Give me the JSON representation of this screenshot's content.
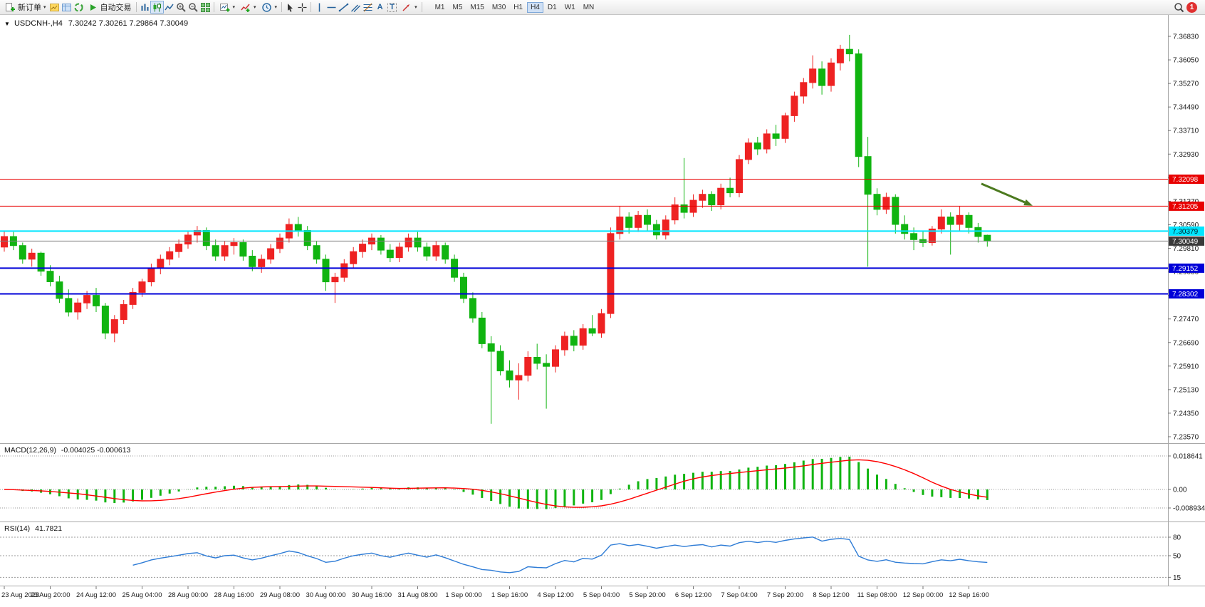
{
  "toolbar": {
    "new_order": "新订单",
    "autotrade": "自动交易",
    "timeframes": [
      "M1",
      "M5",
      "M15",
      "M30",
      "H1",
      "H4",
      "D1",
      "W1",
      "MN"
    ],
    "active_timeframe": "H4",
    "notification_count": "1"
  },
  "icons": {
    "dropdown_caret": "▾",
    "symbol_collapse": "▼",
    "text_tool": "A",
    "label_tool": "T"
  },
  "symbol_header": {
    "symbol_period": "USDCNH-,H4",
    "ohlc": "7.30242 7.30261 7.29864 7.30049"
  },
  "chart_data": [
    {
      "type": "candlestick",
      "title": "USDCNH-,H4",
      "up_color": "#ee2222",
      "down_color": "#10b410",
      "y_axis": {
        "min": 7.2357,
        "max": 7.3683,
        "step": 0.0078,
        "decimals": 5
      },
      "label_every": 5,
      "x_labels": [
        "23 Aug 2023",
        "23 Aug 20:00",
        "24 Aug 12:00",
        "25 Aug 04:00",
        "28 Aug 00:00",
        "28 Aug 16:00",
        "29 Aug 08:00",
        "30 Aug 00:00",
        "30 Aug 16:00",
        "31 Aug 08:00",
        "1 Sep 00:00",
        "1 Sep 16:00",
        "4 Sep 12:00",
        "5 Sep 04:00",
        "5 Sep 20:00",
        "6 Sep 12:00",
        "7 Sep 04:00",
        "7 Sep 20:00",
        "8 Sep 12:00",
        "11 Sep 08:00",
        "12 Sep 00:00",
        "12 Sep 16:00"
      ],
      "levels": [
        {
          "price": 7.32098,
          "price_display": "7.32098",
          "color": "#e80000",
          "width": 1,
          "badge_bg": "#e80000",
          "badge_fg": "#ffffff"
        },
        {
          "price": 7.31205,
          "price_display": "7.31205",
          "color": "#e80000",
          "width": 1,
          "badge_bg": "#e80000",
          "badge_fg": "#ffffff"
        },
        {
          "price": 7.30379,
          "price_display": "7.30379",
          "color": "#00e5ff",
          "width": 2,
          "badge_bg": "#00e5ff",
          "badge_fg": "#00222a"
        },
        {
          "price": 7.30049,
          "price_display": "7.30049",
          "color": "#808080",
          "width": 1,
          "badge_bg": "#3a3a3a",
          "badge_fg": "#ffffff"
        },
        {
          "price": 7.29152,
          "price_display": "7.29152",
          "color": "#0000d8",
          "width": 2,
          "badge_bg": "#0000d8",
          "badge_fg": "#ffffff"
        },
        {
          "price": 7.28302,
          "price_display": "7.28302",
          "color": "#0000d8",
          "width": 2,
          "badge_bg": "#0000d8",
          "badge_fg": "#ffffff"
        }
      ],
      "bid_price": 7.30049,
      "arrow": {
        "color": "#4c7a1f",
        "from_price": 7.3195,
        "to_price": 7.3122
      },
      "candles": [
        [
          7.2985,
          7.304,
          7.297,
          7.302
        ],
        [
          7.302,
          7.3035,
          7.2975,
          7.299
        ],
        [
          7.299,
          7.3,
          7.293,
          7.2945
        ],
        [
          7.2945,
          7.298,
          7.292,
          7.2965
        ],
        [
          7.2965,
          7.297,
          7.289,
          7.2905
        ],
        [
          7.2905,
          7.2925,
          7.2855,
          7.287
        ],
        [
          7.287,
          7.289,
          7.28,
          7.2815
        ],
        [
          7.2815,
          7.2845,
          7.2755,
          7.277
        ],
        [
          7.277,
          7.2815,
          7.2745,
          7.28
        ],
        [
          7.28,
          7.284,
          7.278,
          7.2825
        ],
        [
          7.2825,
          7.285,
          7.277,
          7.279
        ],
        [
          7.279,
          7.28,
          7.268,
          7.27
        ],
        [
          7.27,
          7.276,
          7.267,
          7.2745
        ],
        [
          7.2745,
          7.281,
          7.273,
          7.2795
        ],
        [
          7.2795,
          7.285,
          7.278,
          7.2835
        ],
        [
          7.2835,
          7.288,
          7.282,
          7.287
        ],
        [
          7.287,
          7.293,
          7.2855,
          7.2915
        ],
        [
          7.2915,
          7.296,
          7.2895,
          7.2945
        ],
        [
          7.2945,
          7.2985,
          7.2925,
          7.297
        ],
        [
          7.297,
          7.301,
          7.295,
          7.2995
        ],
        [
          7.2995,
          7.304,
          7.298,
          7.3025
        ],
        [
          7.3025,
          7.3055,
          7.3,
          7.304
        ],
        [
          7.304,
          7.305,
          7.2975,
          7.299
        ],
        [
          7.299,
          7.301,
          7.294,
          7.2955
        ],
        [
          7.2955,
          7.3005,
          7.294,
          7.299
        ],
        [
          7.299,
          7.3015,
          7.296,
          7.3
        ],
        [
          7.3,
          7.301,
          7.294,
          7.2955
        ],
        [
          7.2955,
          7.2975,
          7.2905,
          7.292
        ],
        [
          7.292,
          7.296,
          7.29,
          7.2945
        ],
        [
          7.2945,
          7.2995,
          7.293,
          7.298
        ],
        [
          7.298,
          7.303,
          7.2965,
          7.3015
        ],
        [
          7.3015,
          7.308,
          7.3,
          7.306
        ],
        [
          7.306,
          7.3085,
          7.302,
          7.304
        ],
        [
          7.304,
          7.3055,
          7.2975,
          7.299
        ],
        [
          7.299,
          7.3005,
          7.293,
          7.2945
        ],
        [
          7.2945,
          7.296,
          7.284,
          7.287
        ],
        [
          7.287,
          7.29,
          7.28,
          7.2885
        ],
        [
          7.2885,
          7.2945,
          7.287,
          7.293
        ],
        [
          7.293,
          7.2985,
          7.2915,
          7.297
        ],
        [
          7.297,
          7.301,
          7.295,
          7.2995
        ],
        [
          7.2995,
          7.303,
          7.2975,
          7.3015
        ],
        [
          7.3015,
          7.3025,
          7.296,
          7.2975
        ],
        [
          7.2975,
          7.2995,
          7.2935,
          7.295
        ],
        [
          7.295,
          7.3,
          7.2935,
          7.2985
        ],
        [
          7.2985,
          7.303,
          7.297,
          7.3015
        ],
        [
          7.3015,
          7.3035,
          7.297,
          7.2985
        ],
        [
          7.2985,
          7.3,
          7.294,
          7.2955
        ],
        [
          7.2955,
          7.3005,
          7.294,
          7.299
        ],
        [
          7.299,
          7.3,
          7.293,
          7.2945
        ],
        [
          7.2945,
          7.296,
          7.287,
          7.2885
        ],
        [
          7.2885,
          7.29,
          7.28,
          7.2815
        ],
        [
          7.2815,
          7.2835,
          7.2735,
          7.275
        ],
        [
          7.275,
          7.277,
          7.265,
          7.2665
        ],
        [
          7.2665,
          7.269,
          7.24,
          7.264
        ],
        [
          7.264,
          7.266,
          7.256,
          7.2575
        ],
        [
          7.2575,
          7.261,
          7.252,
          7.2545
        ],
        [
          7.2545,
          7.26,
          7.248,
          7.256
        ],
        [
          7.256,
          7.264,
          7.254,
          7.262
        ],
        [
          7.262,
          7.2665,
          7.258,
          7.26
        ],
        [
          7.26,
          7.263,
          7.245,
          7.259
        ],
        [
          7.259,
          7.266,
          7.257,
          7.2645
        ],
        [
          7.2645,
          7.2705,
          7.2625,
          7.269
        ],
        [
          7.269,
          7.271,
          7.264,
          7.266
        ],
        [
          7.266,
          7.273,
          7.2645,
          7.2715
        ],
        [
          7.2715,
          7.276,
          7.269,
          7.27
        ],
        [
          7.27,
          7.278,
          7.2685,
          7.2765
        ],
        [
          7.2765,
          7.305,
          7.275,
          7.303
        ],
        [
          7.303,
          7.312,
          7.301,
          7.3085
        ],
        [
          7.3085,
          7.31,
          7.303,
          7.305
        ],
        [
          7.305,
          7.3105,
          7.3035,
          7.309
        ],
        [
          7.309,
          7.311,
          7.304,
          7.306
        ],
        [
          7.306,
          7.3075,
          7.301,
          7.3025
        ],
        [
          7.3025,
          7.309,
          7.301,
          7.3075
        ],
        [
          7.3075,
          7.315,
          7.306,
          7.3125
        ],
        [
          7.3125,
          7.328,
          7.308,
          7.31
        ],
        [
          7.31,
          7.316,
          7.3085,
          7.314
        ],
        [
          7.314,
          7.3175,
          7.3115,
          7.316
        ],
        [
          7.316,
          7.317,
          7.3105,
          7.3125
        ],
        [
          7.3125,
          7.3195,
          7.311,
          7.318
        ],
        [
          7.318,
          7.3215,
          7.315,
          7.3165
        ],
        [
          7.3165,
          7.329,
          7.315,
          7.3275
        ],
        [
          7.3275,
          7.3345,
          7.326,
          7.333
        ],
        [
          7.333,
          7.335,
          7.329,
          7.331
        ],
        [
          7.331,
          7.3375,
          7.3295,
          7.336
        ],
        [
          7.336,
          7.339,
          7.332,
          7.3345
        ],
        [
          7.3345,
          7.343,
          7.333,
          7.342
        ],
        [
          7.342,
          7.35,
          7.34,
          7.3485
        ],
        [
          7.3485,
          7.3545,
          7.346,
          7.353
        ],
        [
          7.353,
          7.362,
          7.351,
          7.3575
        ],
        [
          7.3575,
          7.36,
          7.349,
          7.352
        ],
        [
          7.352,
          7.361,
          7.35,
          7.3595
        ],
        [
          7.3595,
          7.3655,
          7.357,
          7.364
        ],
        [
          7.364,
          7.3688,
          7.36,
          7.3625
        ],
        [
          7.3625,
          7.364,
          7.325,
          7.3285
        ],
        [
          7.3285,
          7.335,
          7.292,
          7.316
        ],
        [
          7.316,
          7.318,
          7.309,
          7.311
        ],
        [
          7.311,
          7.3165,
          7.3095,
          7.315
        ],
        [
          7.315,
          7.316,
          7.303,
          7.306
        ],
        [
          7.306,
          7.309,
          7.301,
          7.303
        ],
        [
          7.303,
          7.305,
          7.2975,
          7.301
        ],
        [
          7.301,
          7.304,
          7.2985,
          7.3
        ],
        [
          7.3,
          7.3055,
          7.299,
          7.3045
        ],
        [
          7.3045,
          7.311,
          7.303,
          7.3085
        ],
        [
          7.3085,
          7.31,
          7.296,
          7.306
        ],
        [
          7.306,
          7.312,
          7.304,
          7.309
        ],
        [
          7.309,
          7.31,
          7.303,
          7.305
        ],
        [
          7.305,
          7.3065,
          7.3,
          7.302
        ],
        [
          7.30242,
          7.30261,
          7.29864,
          7.30049
        ]
      ]
    },
    {
      "type": "macd",
      "label": "MACD(12,26,9)",
      "params": [
        12,
        26,
        9
      ],
      "values_display": "-0.004025 -0.000613",
      "axis_labels": [
        "0.018641",
        "0.00",
        "-0.008934"
      ],
      "histogram_color": "#10b410",
      "signal_color": "#ff0000"
    },
    {
      "type": "rsi",
      "label": "RSI(14)",
      "period": 14,
      "value_display": "41.7821",
      "levels": [
        80,
        50,
        15
      ],
      "line_color": "#2e7cd6"
    }
  ]
}
